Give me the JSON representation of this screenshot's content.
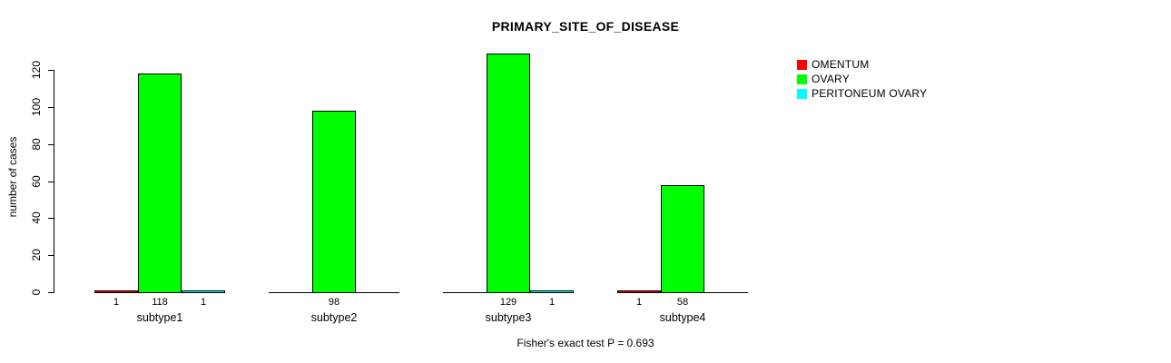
{
  "title": "PRIMARY_SITE_OF_DISEASE",
  "chart_data": {
    "type": "bar",
    "title": "PRIMARY_SITE_OF_DISEASE",
    "xlabel": "",
    "ylabel": "number of cases",
    "categories": [
      "subtype1",
      "subtype2",
      "subtype3",
      "subtype4"
    ],
    "series": [
      {
        "name": "OMENTUM",
        "color": "#ff0000",
        "values": [
          1,
          0,
          0,
          1
        ]
      },
      {
        "name": "OVARY",
        "color": "#00ff00",
        "values": [
          118,
          98,
          129,
          58
        ]
      },
      {
        "name": "PERITONEUM OVARY",
        "color": "#00ffff",
        "values": [
          1,
          0,
          1,
          0
        ]
      }
    ],
    "yticks": [
      0,
      20,
      40,
      60,
      80,
      100,
      120
    ],
    "ylim": [
      0,
      130
    ],
    "grid": false,
    "legend_position": "right",
    "bar_value_labels_shown": true,
    "annotation": "Fisher's exact test P = 0.693",
    "axis_color": "#000000",
    "background_color": "#ffffff"
  }
}
